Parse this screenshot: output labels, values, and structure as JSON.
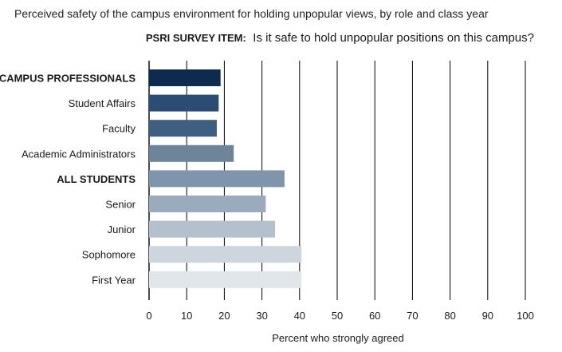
{
  "chart_data": {
    "type": "bar",
    "orientation": "horizontal",
    "title": "Perceived safety of the campus environment for holding unpopular views, by role and class year",
    "subtitle_prefix": "PSRI SURVEY ITEM:",
    "subtitle": "Is it safe to hold unpopular positions on this campus?",
    "xlabel": "Percent who strongly agreed",
    "ylabel": "",
    "xlim": [
      0,
      100
    ],
    "xticks": [
      "0",
      "10",
      "20",
      "30",
      "40",
      "50",
      "60",
      "70",
      "80",
      "90",
      "100"
    ],
    "grid": true,
    "categories": [
      "CAMPUS PROFESSIONALS",
      "Student Affairs",
      "Faculty",
      "Academic Administrators",
      "ALL STUDENTS",
      "Senior",
      "Junior",
      "Sophomore",
      "First Year"
    ],
    "bold_categories": [
      "CAMPUS PROFESSIONALS",
      "ALL STUDENTS"
    ],
    "values": [
      19,
      18.5,
      18,
      22.5,
      36,
      31,
      33.5,
      40.5,
      40.5
    ],
    "colors": [
      "#0e2a4f",
      "#2b4c73",
      "#3f5e80",
      "#6e8499",
      "#7f95ab",
      "#9aabbd",
      "#b4c1cd",
      "#cdd6de",
      "#e1e6eb"
    ]
  }
}
